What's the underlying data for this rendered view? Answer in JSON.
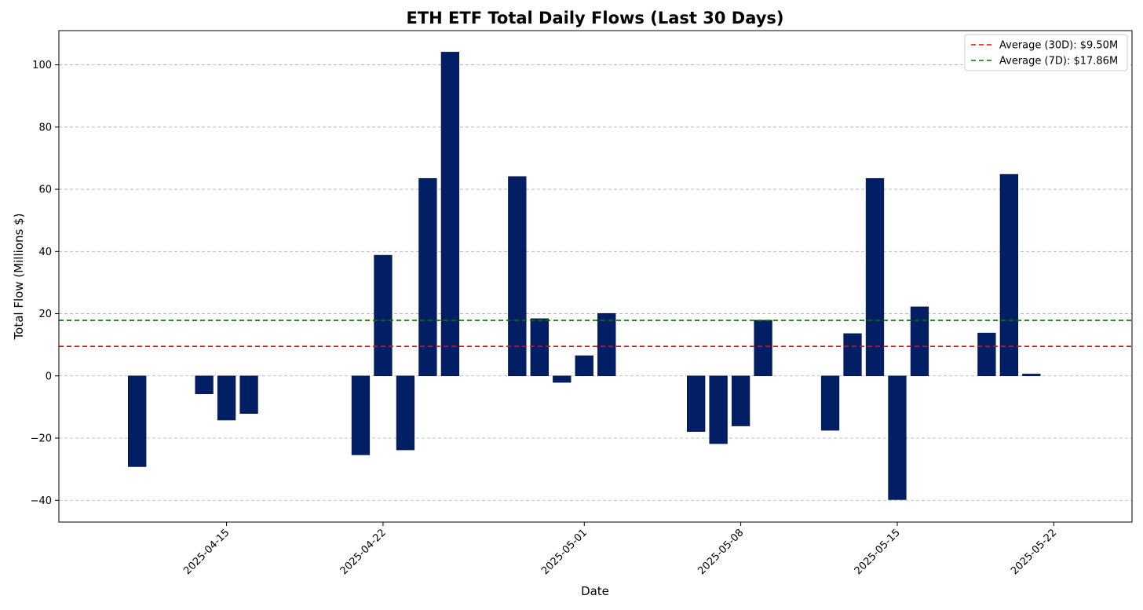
{
  "chart_data": {
    "type": "bar",
    "title": "ETH ETF Total Daily Flows (Last 30 Days)",
    "xlabel": "Date",
    "ylabel": "Total Flow (Millions $)",
    "ylim": [
      -47,
      111
    ],
    "xlim": [
      "2025-04-07T12:00",
      "2025-05-25T12:00"
    ],
    "grid": "y-dashed",
    "legend_position": "top-right",
    "bar_color": "#021F66",
    "xticks": [
      "2025-04-15",
      "2025-04-22",
      "2025-05-01",
      "2025-05-08",
      "2025-05-15",
      "2025-05-22"
    ],
    "yticks": [
      -40,
      -20,
      0,
      20,
      40,
      60,
      80,
      100
    ],
    "dates": [
      "2025-04-11",
      "2025-04-14",
      "2025-04-15",
      "2025-04-16",
      "2025-04-21",
      "2025-04-22",
      "2025-04-23",
      "2025-04-24",
      "2025-04-25",
      "2025-04-28",
      "2025-04-29",
      "2025-04-30",
      "2025-05-01",
      "2025-05-02",
      "2025-05-06",
      "2025-05-07",
      "2025-05-08",
      "2025-05-09",
      "2025-05-12",
      "2025-05-13",
      "2025-05-14",
      "2025-05-15",
      "2025-05-16",
      "2025-05-19",
      "2025-05-20",
      "2025-05-21"
    ],
    "values": [
      -29.2,
      -5.8,
      -14.2,
      -12.1,
      -25.4,
      38.8,
      -23.8,
      63.5,
      104.1,
      64.1,
      18.4,
      -2.1,
      6.5,
      20.1,
      -17.9,
      -21.8,
      -16.1,
      17.9,
      -17.5,
      13.6,
      63.5,
      -39.8,
      22.2,
      13.8,
      64.8,
      0.6
    ],
    "reference_lines": [
      {
        "name": "Average (30D): $9.50M",
        "value": 9.5,
        "color": "#FF0000"
      },
      {
        "name": "Average (7D): $17.86M",
        "value": 17.86,
        "color": "#007700"
      }
    ]
  }
}
